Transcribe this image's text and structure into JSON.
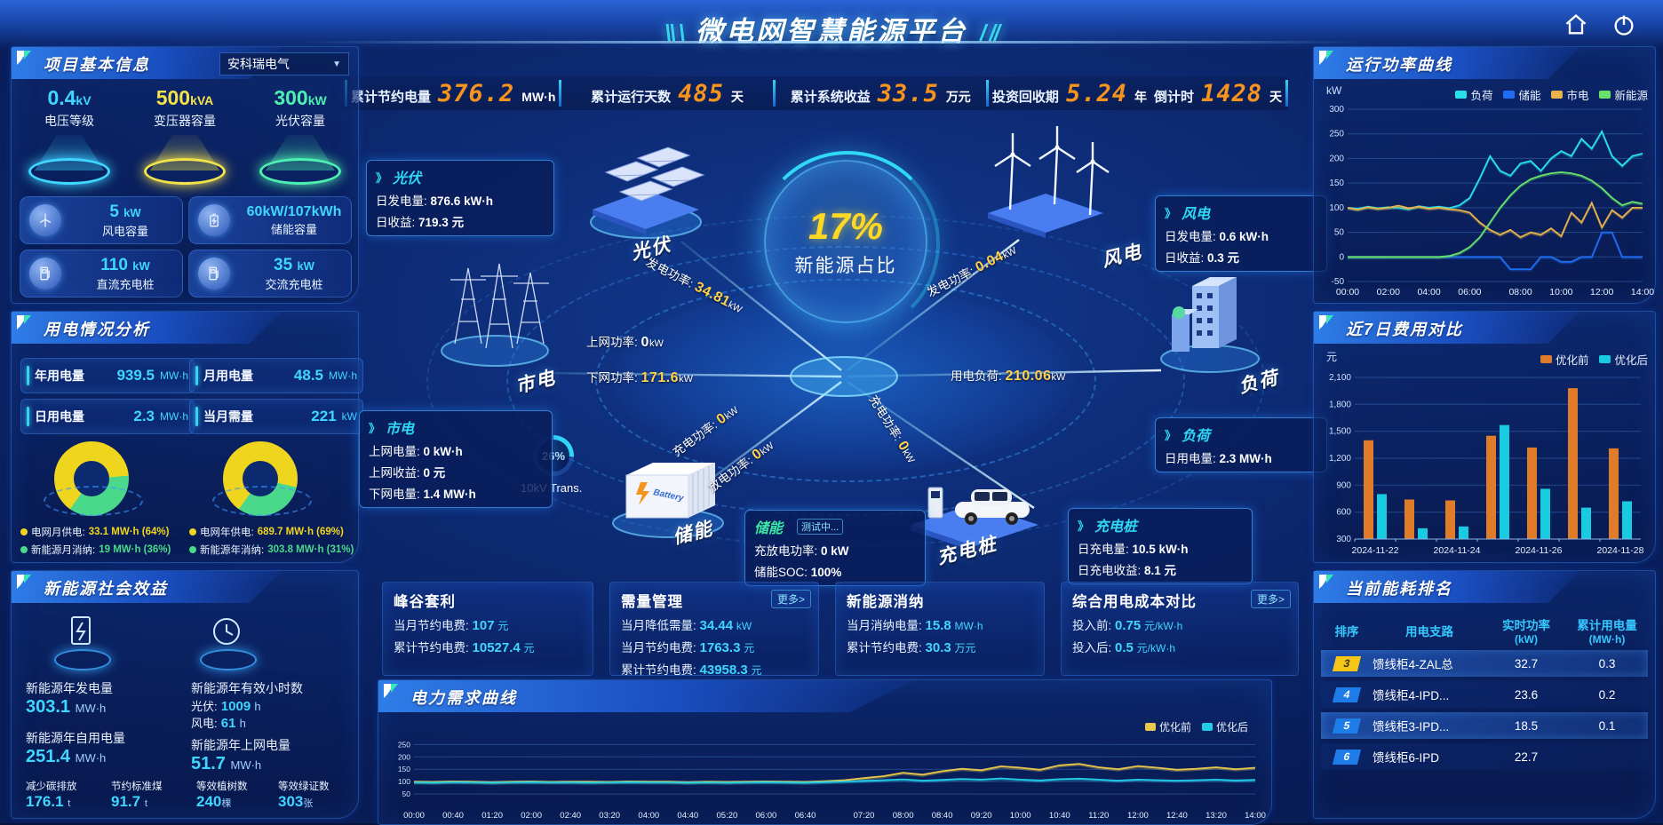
{
  "header": {
    "title": "微电网智慧能源平台",
    "decor_left": "\\\\ \\",
    "decor_right": "/ //"
  },
  "kpis": [
    {
      "label": "累计节约电量",
      "value": "376.2",
      "unit": "MW·h"
    },
    {
      "label": "累计运行天数",
      "value": "485",
      "unit": "天"
    },
    {
      "label": "累计系统收益",
      "value": "33.5",
      "unit": "万元"
    },
    {
      "label": "投资回收期",
      "value": "5.24",
      "unit": "年"
    },
    {
      "label": "倒计时",
      "value": "1428",
      "unit": "天"
    }
  ],
  "project_info": {
    "title": "项目基本信息",
    "selector": "安科瑞电气",
    "selector_arrow": "▼",
    "pedestals": [
      {
        "value": "0.4",
        "unit": "kV",
        "label": "电压等级",
        "color": "#3fd6ff"
      },
      {
        "value": "500",
        "unit": "kVA",
        "label": "变压器容量",
        "color": "#f3e24a"
      },
      {
        "value": "300",
        "unit": "kW",
        "label": "光伏容量",
        "color": "#4df0b0"
      }
    ],
    "cards": [
      {
        "value": "5",
        "unit": "kW",
        "label": "风电容量"
      },
      {
        "value": "60kW/107kWh",
        "unit": "",
        "label": "储能容量"
      },
      {
        "value": "110",
        "unit": "kW",
        "label": "直流充电桩"
      },
      {
        "value": "35",
        "unit": "kW",
        "label": "交流充电桩"
      }
    ]
  },
  "power_usage": {
    "title": "用电情况分析",
    "cards": [
      {
        "label": "年用电量",
        "value": "939.5",
        "unit": "MW·h"
      },
      {
        "label": "月用电量",
        "value": "48.5",
        "unit": "MW·h"
      },
      {
        "label": "日用电量",
        "value": "2.3",
        "unit": "MW·h"
      },
      {
        "label": "当月需量",
        "value": "221",
        "unit": "kW"
      }
    ],
    "donuts": [
      {
        "slices": [
          64,
          36
        ],
        "legend": [
          {
            "label": "电网月供电:",
            "value": "33.1 MW·h (64%)",
            "color": "#f0d51e"
          },
          {
            "label": "新能源月消纳:",
            "value": "19 MW·h (36%)",
            "color": "#4ad98a"
          }
        ]
      },
      {
        "slices": [
          69,
          31
        ],
        "legend": [
          {
            "label": "电网年供电:",
            "value": "689.7 MW·h (69%)",
            "color": "#f0d51e"
          },
          {
            "label": "新能源年消纳:",
            "value": "303.8 MW·h (31%)",
            "color": "#4ad98a"
          }
        ]
      }
    ]
  },
  "social_benefit": {
    "title": "新能源社会效益",
    "gen": {
      "label": "新能源年发电量",
      "value": "303.1",
      "unit": "MW·h"
    },
    "hours": {
      "label": "新能源年有效小时数",
      "rows": [
        {
          "k": "光伏:",
          "v": "1009",
          "u": "h"
        },
        {
          "k": "风电:",
          "v": "61",
          "u": "h"
        }
      ]
    },
    "self_use": {
      "label": "新能源年自用电量",
      "value": "251.4",
      "unit": "MW·h"
    },
    "to_grid": {
      "label": "新能源年上网电量",
      "value": "51.7",
      "unit": "MW·h"
    },
    "minis": [
      {
        "label": "减少碳排放",
        "value": "176.1",
        "unit": "t"
      },
      {
        "label": "节约标准煤",
        "value": "91.7",
        "unit": "t"
      },
      {
        "label": "等效植树数",
        "value": "240",
        "unit": "棵"
      },
      {
        "label": "等效绿证数",
        "value": "303",
        "unit": "张"
      }
    ]
  },
  "diagram": {
    "center": {
      "percent": "17%",
      "label": "新能源占比"
    },
    "transformer": {
      "percent": "26%",
      "label": "10kV Trans."
    },
    "nodes": {
      "pv": "光伏",
      "grid": "市电",
      "wind": "风电",
      "load": "负荷",
      "storage": "储能",
      "charger": "充电桩"
    },
    "flows": {
      "pv_gen": {
        "label": "发电功率:",
        "value": "34.81",
        "unit": "kW",
        "color": "#ffd24a"
      },
      "grid_up": {
        "label": "上网功率:",
        "value": "0",
        "unit": "kW",
        "color": "#ffffff"
      },
      "grid_down": {
        "label": "下网功率:",
        "value": "171.6",
        "unit": "kW",
        "color": "#ffd24a"
      },
      "wind_gen": {
        "label": "发电功率:",
        "value": "0.04",
        "unit": "kW",
        "color": "#ffd24a"
      },
      "load_use": {
        "label": "用电负荷:",
        "value": "210.06",
        "unit": "kW",
        "color": "#ffd24a"
      },
      "sto_charge": {
        "label": "充电功率:",
        "value": "0",
        "unit": "kW",
        "color": "#ffd24a"
      },
      "sto_discharge": {
        "label": "放电功率:",
        "value": "0",
        "unit": "kW",
        "color": "#ffd24a"
      },
      "chg_charge": {
        "label": "充电功率:",
        "value": "0",
        "unit": "kW",
        "color": "#ffd24a"
      }
    },
    "tooltips": {
      "pv": {
        "title": "光伏",
        "rows": [
          {
            "k": "日发电量:",
            "v": "876.6 kW·h"
          },
          {
            "k": "日收益:",
            "v": "719.3 元"
          }
        ]
      },
      "grid": {
        "title": "市电",
        "rows": [
          {
            "k": "上网电量:",
            "v": "0 kW·h"
          },
          {
            "k": "上网收益:",
            "v": "0 元"
          },
          {
            "k": "下网电量:",
            "v": "1.4 MW·h"
          }
        ]
      },
      "wind": {
        "title": "风电",
        "rows": [
          {
            "k": "日发电量:",
            "v": "0.6 kW·h"
          },
          {
            "k": "日收益:",
            "v": "0.3 元"
          }
        ]
      },
      "load": {
        "title": "负荷",
        "rows": [
          {
            "k": "日用电量:",
            "v": "2.3 MW·h"
          }
        ]
      },
      "storage": {
        "title": "储能",
        "badge": "测试中...",
        "rows": [
          {
            "k": "充放电功率:",
            "v": "0 kW"
          },
          {
            "k": "储能SOC:",
            "v": "100%"
          }
        ]
      },
      "charger": {
        "title": "充电桩",
        "rows": [
          {
            "k": "日充电量:",
            "v": "10.5 kW·h"
          },
          {
            "k": "日充电收益:",
            "v": "8.1 元"
          }
        ]
      }
    }
  },
  "benefit_cards": [
    {
      "title": "峰谷套利",
      "rows": [
        {
          "k": "当月节约电费:",
          "v": "107",
          "u": "元"
        },
        {
          "k": "累计节约电费:",
          "v": "10527.4",
          "u": "元"
        }
      ]
    },
    {
      "title": "需量管理",
      "more": "更多>",
      "rows": [
        {
          "k": "当月降低需量:",
          "v": "34.44",
          "u": "kW"
        },
        {
          "k": "当月节约电费:",
          "v": "1763.3",
          "u": "元"
        },
        {
          "k": "累计节约电费:",
          "v": "43958.3",
          "u": "元"
        }
      ]
    },
    {
      "title": "新能源消纳",
      "rows": [
        {
          "k": "当月消纳电量:",
          "v": "15.8",
          "u": "MW·h"
        },
        {
          "k": "累计节约电费:",
          "v": "30.3",
          "u": "万元"
        }
      ]
    },
    {
      "title": "综合用电成本对比",
      "more": "更多>",
      "rows": [
        {
          "k": "投入前:",
          "v": "0.75",
          "u": "元/kW·h"
        },
        {
          "k": "投入后:",
          "v": "0.5",
          "u": "元/kW·h"
        }
      ]
    }
  ],
  "ranking": {
    "title": "当前能耗排名",
    "headers": [
      {
        "t": "排序",
        "sub": ""
      },
      {
        "t": "用电支路",
        "sub": ""
      },
      {
        "t": "实时功率",
        "sub": "(kW)"
      },
      {
        "t": "累计用电量",
        "sub": "(MW·h)"
      }
    ],
    "rows": [
      {
        "rank": "3",
        "branch": "馈线柜4-ZAL总",
        "power": "32.7",
        "energy": "0.3",
        "highlight": true,
        "badge_color": "#f5c518"
      },
      {
        "rank": "4",
        "branch": "馈线柜4-IPD...",
        "power": "23.6",
        "energy": "0.2",
        "highlight": false,
        "badge_color": "#1e7ce8"
      },
      {
        "rank": "5",
        "branch": "馈线柜3-IPD...",
        "power": "18.5",
        "energy": "0.1",
        "highlight": true,
        "badge_color": "#1e7ce8"
      },
      {
        "rank": "6",
        "branch": "馈线柜6-IPD",
        "power": "22.7",
        "energy": "",
        "highlight": false,
        "badge_color": "#1e7ce8"
      }
    ]
  },
  "chart_data": [
    {
      "id": "run_power",
      "type": "line",
      "title": "运行功率曲线",
      "ylabel": "kW",
      "ylim": [
        -50,
        300
      ],
      "yticks": [
        300,
        250,
        200,
        150,
        100,
        50,
        0,
        -50
      ],
      "xticks": [
        "00:00",
        "02:00",
        "04:00",
        "06:00",
        "08:00",
        "10:00",
        "12:00",
        "14:00"
      ],
      "legend_position": "top",
      "grid": true,
      "series": [
        {
          "name": "负荷",
          "color": "#29e0e8",
          "values": [
            100,
            98,
            102,
            99,
            101,
            100,
            97,
            103,
            100,
            102,
            99,
            105,
            120,
            160,
            205,
            175,
            165,
            190,
            195,
            175,
            200,
            215,
            205,
            240,
            220,
            255,
            205,
            185,
            205,
            210
          ]
        },
        {
          "name": "储能",
          "color": "#1f6df0",
          "values": [
            0,
            0,
            0,
            0,
            0,
            0,
            0,
            0,
            0,
            0,
            0,
            0,
            0,
            0,
            0,
            0,
            -25,
            -25,
            -25,
            0,
            0,
            -10,
            -10,
            0,
            0,
            50,
            50,
            0,
            0,
            0
          ]
        },
        {
          "name": "市电",
          "color": "#e8b449",
          "values": [
            100,
            96,
            101,
            98,
            100,
            104,
            99,
            102,
            98,
            100,
            97,
            95,
            90,
            70,
            55,
            45,
            55,
            40,
            50,
            45,
            58,
            42,
            90,
            70,
            110,
            60,
            95,
            80,
            100,
            100
          ]
        },
        {
          "name": "新能源",
          "color": "#67e36c",
          "values": [
            0,
            0,
            0,
            0,
            0,
            0,
            0,
            0,
            0,
            0,
            2,
            8,
            20,
            40,
            70,
            100,
            125,
            145,
            158,
            165,
            170,
            172,
            170,
            165,
            155,
            140,
            120,
            105,
            112,
            108
          ]
        }
      ]
    },
    {
      "id": "cost7",
      "type": "bar",
      "title": "近7日费用对比",
      "ylabel": "元",
      "ylim": [
        300,
        2100
      ],
      "yticks": [
        2100,
        1800,
        1500,
        1200,
        900,
        600,
        300
      ],
      "categories": [
        "2024-11-22",
        "2024-11-23",
        "2024-11-24",
        "2024-11-25",
        "2024-11-26",
        "2024-11-27",
        "2024-11-28"
      ],
      "xticks_shown": [
        "2024-11-22",
        "2024-11-24",
        "2024-11-26",
        "2024-11-28"
      ],
      "legend_position": "top",
      "grid": true,
      "series": [
        {
          "name": "优化前",
          "color": "#e07b2a",
          "values": [
            1400,
            740,
            730,
            1450,
            1320,
            1980,
            1310
          ]
        },
        {
          "name": "优化后",
          "color": "#19cbe0",
          "values": [
            800,
            420,
            440,
            1570,
            860,
            650,
            720
          ]
        }
      ]
    },
    {
      "id": "demand",
      "type": "line",
      "title": "电力需求曲线",
      "ylabel": "kW",
      "ylim": [
        0,
        280
      ],
      "yticks": [
        250,
        200,
        150,
        100,
        50
      ],
      "xticks": [
        "00:00",
        "00:40",
        "01:20",
        "02:00",
        "02:40",
        "03:20",
        "04:00",
        "04:40",
        "05:20",
        "06:00",
        "06:40",
        "07:20",
        "08:00",
        "08:40",
        "09:20",
        "10:00",
        "10:40",
        "11:20",
        "12:00",
        "12:40",
        "13:20",
        "14:00"
      ],
      "legend_position": "top-right",
      "grid": true,
      "series": [
        {
          "name": "优化前",
          "color": "#e8c84b",
          "values": [
            100,
            99,
            101,
            100,
            98,
            100,
            101,
            99,
            100,
            100,
            99,
            101,
            100,
            100,
            98,
            100,
            99,
            100,
            101,
            100,
            99,
            102,
            106,
            114,
            122,
            136,
            128,
            142,
            152,
            146,
            162,
            156,
            148,
            166,
            172,
            158,
            150,
            163,
            156,
            148,
            152,
            158,
            150,
            156
          ]
        },
        {
          "name": "优化后",
          "color": "#22cde8",
          "values": [
            97,
            96,
            98,
            97,
            96,
            97,
            98,
            97,
            97,
            96,
            97,
            98,
            97,
            97,
            96,
            97,
            96,
            97,
            98,
            97,
            96,
            98,
            100,
            103,
            106,
            109,
            104,
            107,
            111,
            108,
            113,
            108,
            105,
            110,
            112,
            108,
            104,
            108,
            106,
            104,
            106,
            108,
            105,
            107
          ]
        }
      ]
    }
  ]
}
